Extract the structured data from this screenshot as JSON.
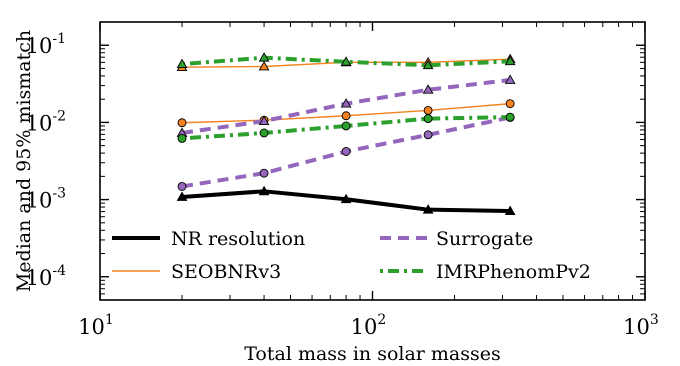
{
  "chart_data": {
    "type": "line",
    "title": "",
    "xlabel": "Total mass in solar masses",
    "ylabel": "Median and 95% mismatch",
    "xscale": "log",
    "yscale": "log",
    "xlim": [
      10,
      1000
    ],
    "ylim": [
      5e-05,
      0.2
    ],
    "x_ticks": [
      {
        "value": 10,
        "base": "10",
        "exp": "1"
      },
      {
        "value": 100,
        "base": "10",
        "exp": "2"
      },
      {
        "value": 1000,
        "base": "10",
        "exp": "3"
      }
    ],
    "y_ticks": [
      {
        "value": 0.0001,
        "base": "10",
        "exp": "-4"
      },
      {
        "value": 0.001,
        "base": "10",
        "exp": "-3"
      },
      {
        "value": 0.01,
        "base": "10",
        "exp": "-2"
      },
      {
        "value": 0.1,
        "base": "10",
        "exp": "-1"
      }
    ],
    "grid": false,
    "legend_position": "lower center",
    "x": [
      20,
      40,
      80,
      160,
      320
    ],
    "series": [
      {
        "name": "NR resolution",
        "color": "#000000",
        "style": "solid-thick",
        "marker": "triangle",
        "values": [
          0.00108,
          0.00128,
          0.00101,
          0.00074,
          0.00071
        ]
      },
      {
        "name": "SEOBNRv3",
        "color": "#f58220",
        "style": "solid-thin",
        "role": "median",
        "marker": "circle",
        "values": [
          0.0099,
          0.0107,
          0.0122,
          0.0143,
          0.0175
        ]
      },
      {
        "name": "SEOBNRv3",
        "color": "#f58220",
        "style": "solid-thin",
        "role": "95%",
        "marker": "triangle",
        "values": [
          0.052,
          0.053,
          0.06,
          0.06,
          0.066
        ]
      },
      {
        "name": "Surrogate",
        "color": "#9467bd",
        "style": "dashed",
        "role": "median",
        "marker": "circle",
        "values": [
          0.00148,
          0.0022,
          0.0042,
          0.0069,
          0.0116
        ]
      },
      {
        "name": "Surrogate",
        "color": "#9467bd",
        "style": "dashed",
        "role": "95%",
        "marker": "triangle",
        "values": [
          0.0073,
          0.0104,
          0.0175,
          0.0265,
          0.0355
        ]
      },
      {
        "name": "IMRPhenomPv2",
        "color": "#2ca02c",
        "style": "dotdash",
        "role": "median",
        "marker": "circle",
        "values": [
          0.0062,
          0.0073,
          0.009,
          0.0112,
          0.0117
        ]
      },
      {
        "name": "IMRPhenomPv2",
        "color": "#2ca02c",
        "style": "dotdash",
        "role": "95%",
        "marker": "triangle",
        "values": [
          0.057,
          0.069,
          0.061,
          0.055,
          0.062
        ]
      }
    ],
    "legend": [
      {
        "label": "NR resolution",
        "color": "#000000",
        "style": "solid-thick"
      },
      {
        "label": "Surrogate",
        "color": "#9467bd",
        "style": "dashed"
      },
      {
        "label": "SEOBNRv3",
        "color": "#f58220",
        "style": "solid-thin"
      },
      {
        "label": "IMRPhenomPv2",
        "color": "#2ca02c",
        "style": "dotdash"
      }
    ]
  }
}
